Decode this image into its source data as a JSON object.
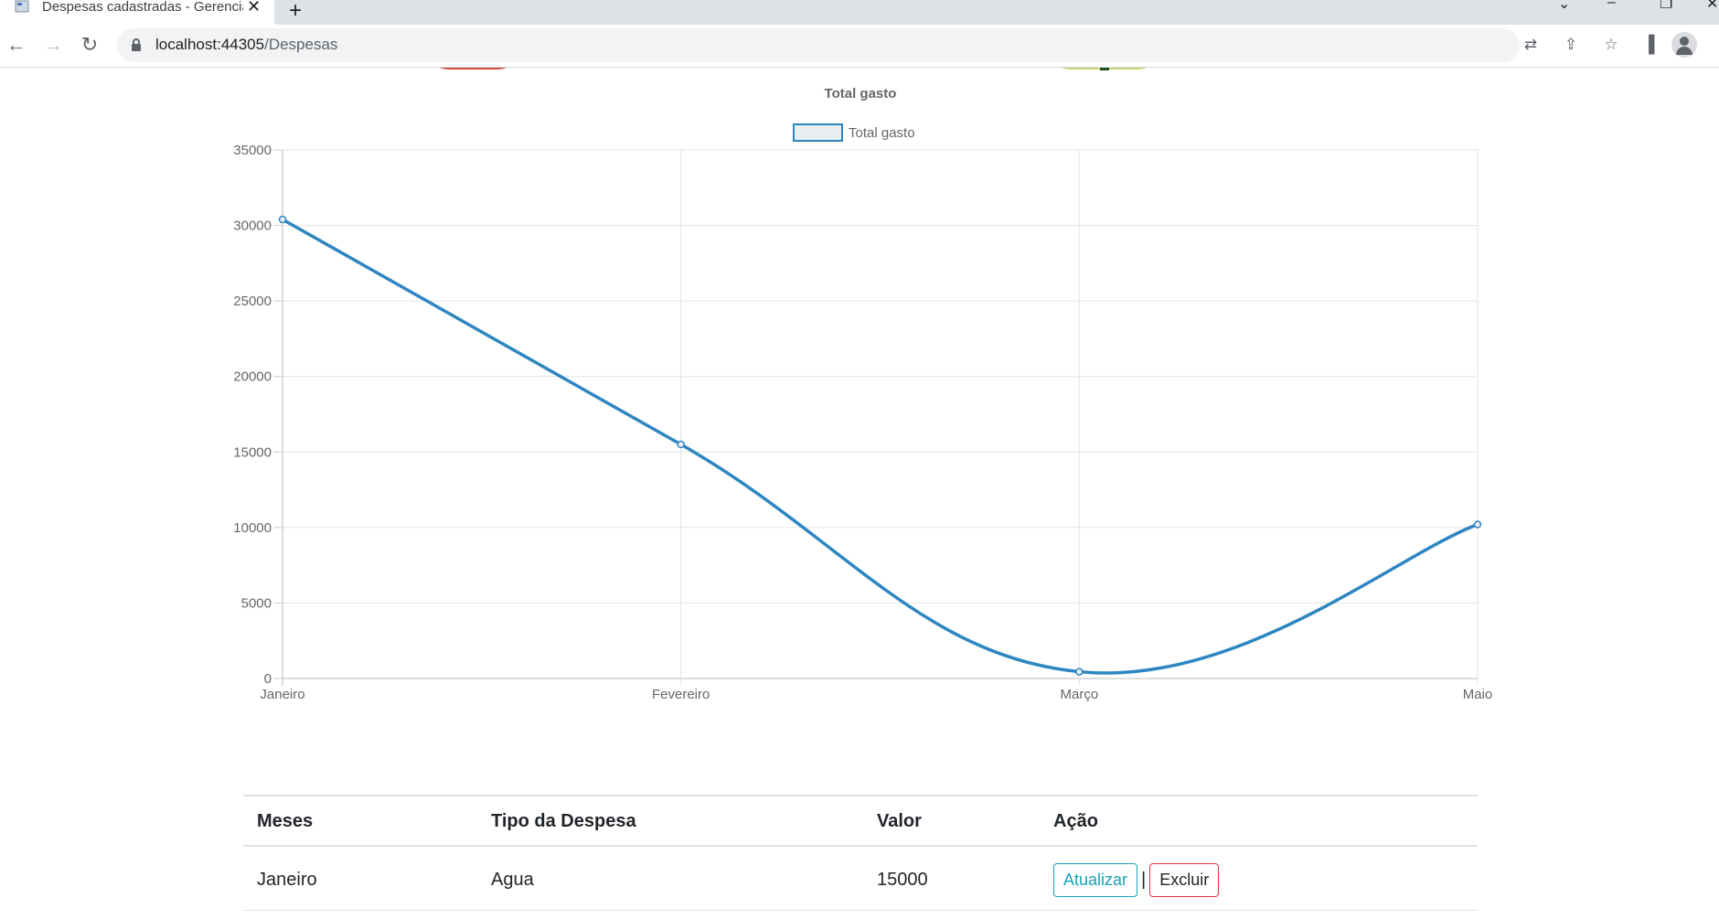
{
  "browser": {
    "tab_title": "Despesas cadastradas - Gerenciador",
    "url_host": "localhost:44305",
    "url_path": "/Despesas"
  },
  "chart_data": {
    "type": "line",
    "title": "Total gasto",
    "legend": [
      "Total gasto"
    ],
    "legend_position": "top",
    "categories": [
      "Janeiro",
      "Fevereiro",
      "Março",
      "Maio"
    ],
    "series": [
      {
        "name": "Total gasto",
        "values": [
          30400,
          15500,
          450,
          10200
        ]
      }
    ],
    "ylim": [
      0,
      35000
    ],
    "yticks": [
      "0",
      "5000",
      "10000",
      "15000",
      "20000",
      "25000",
      "30000",
      "35000"
    ],
    "grid": true,
    "line_color": "#2e86c1",
    "fill_color": "#e8eef2"
  },
  "table": {
    "headers": {
      "month": "Meses",
      "type": "Tipo da Despesa",
      "value": "Valor",
      "action": "Ação"
    },
    "rows": [
      {
        "month": "Janeiro",
        "type": "Agua",
        "value": "15000",
        "update": "Atualizar",
        "separator": "|",
        "delete": "Excluir"
      }
    ]
  },
  "colors": {
    "info": "#17a2b8",
    "danger": "#dc3545"
  }
}
